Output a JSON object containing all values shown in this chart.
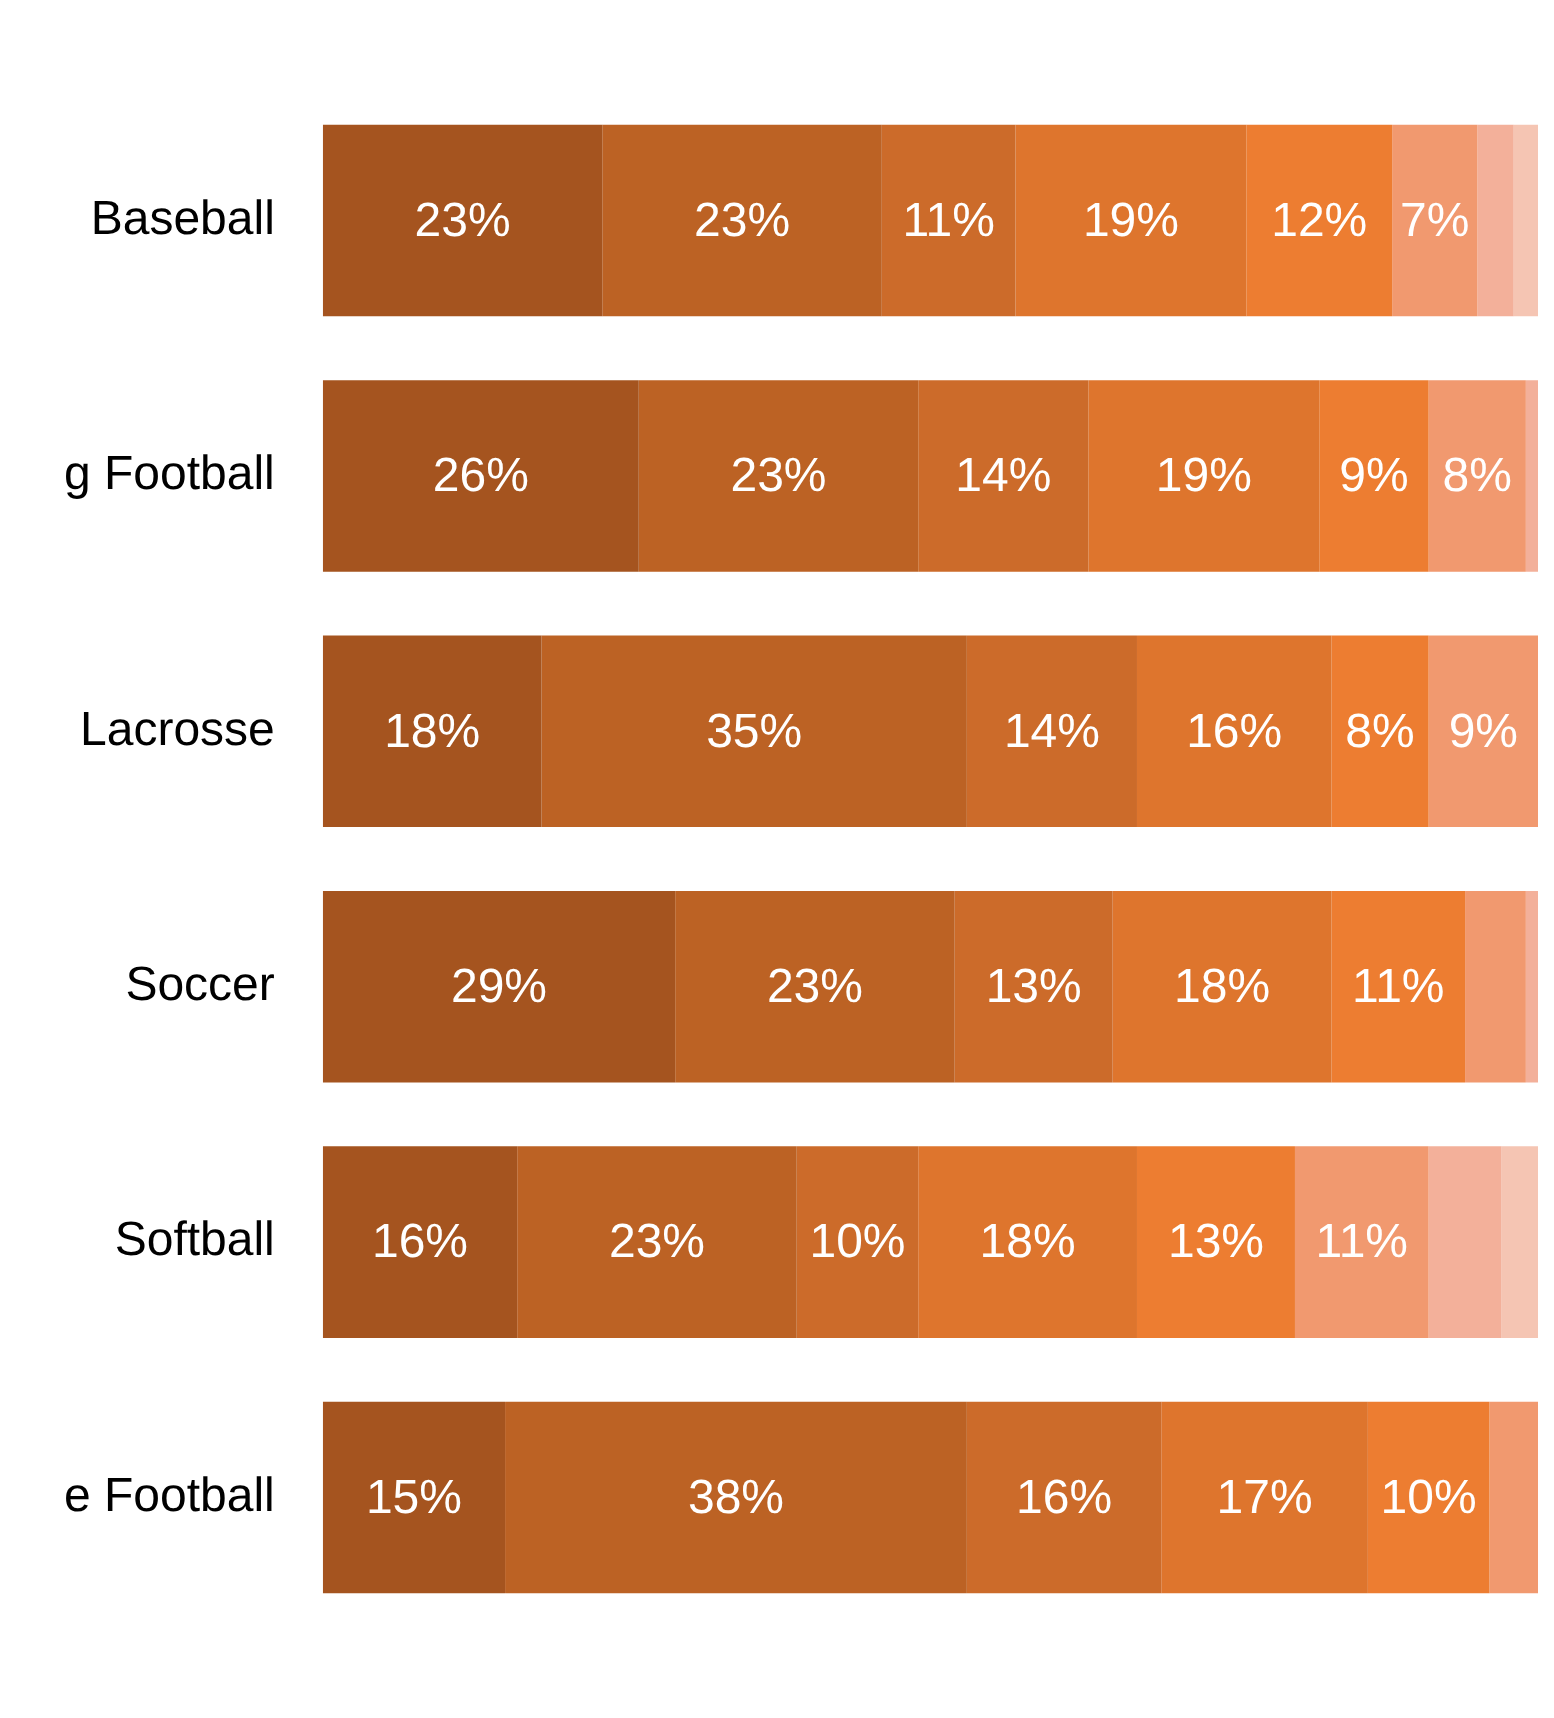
{
  "chart_data": {
    "type": "bar",
    "orientation": "horizontal",
    "stacked": true,
    "grid": false,
    "legend": false,
    "tick_labels": "y",
    "xlim": [
      0,
      100
    ],
    "categories": [
      "Baseball",
      "g Football",
      "Lacrosse",
      "Soccer",
      "Softball",
      "e Football"
    ],
    "series": [
      {
        "color": "#a5541f",
        "values": [
          23,
          26,
          18,
          29,
          16,
          15
        ],
        "value_labels": [
          "23%",
          "26%",
          "18%",
          "29%",
          "16%",
          "15%"
        ]
      },
      {
        "color": "#bc6224",
        "values": [
          23,
          23,
          35,
          23,
          23,
          38
        ],
        "value_labels": [
          "23%",
          "23%",
          "35%",
          "23%",
          "23%",
          "38%"
        ]
      },
      {
        "color": "#cc6b2a",
        "values": [
          11,
          14,
          14,
          13,
          10,
          16
        ],
        "value_labels": [
          "11%",
          "14%",
          "14%",
          "13%",
          "10%",
          "16%"
        ]
      },
      {
        "color": "#de752d",
        "values": [
          19,
          19,
          16,
          18,
          18,
          17
        ],
        "value_labels": [
          "19%",
          "19%",
          "16%",
          "18%",
          "18%",
          "17%"
        ]
      },
      {
        "color": "#ed7d31",
        "values": [
          12,
          9,
          8,
          11,
          13,
          10
        ],
        "value_labels": [
          "12%",
          "9%",
          "8%",
          "11%",
          "13%",
          "10%"
        ]
      },
      {
        "color": "#f1996f",
        "values": [
          7,
          8,
          9,
          5,
          11,
          4
        ],
        "value_labels": [
          "7%",
          "8%",
          "9%",
          null,
          "11%",
          null
        ]
      },
      {
        "color": "#f3b09a",
        "values": [
          3,
          1,
          null,
          1,
          6,
          null
        ],
        "value_labels": [
          null,
          null,
          null,
          null,
          null,
          null
        ]
      },
      {
        "color": "#f5c5b3",
        "values": [
          2,
          null,
          null,
          null,
          3,
          null
        ],
        "value_labels": [
          null,
          null,
          null,
          null,
          null,
          null
        ]
      }
    ]
  }
}
